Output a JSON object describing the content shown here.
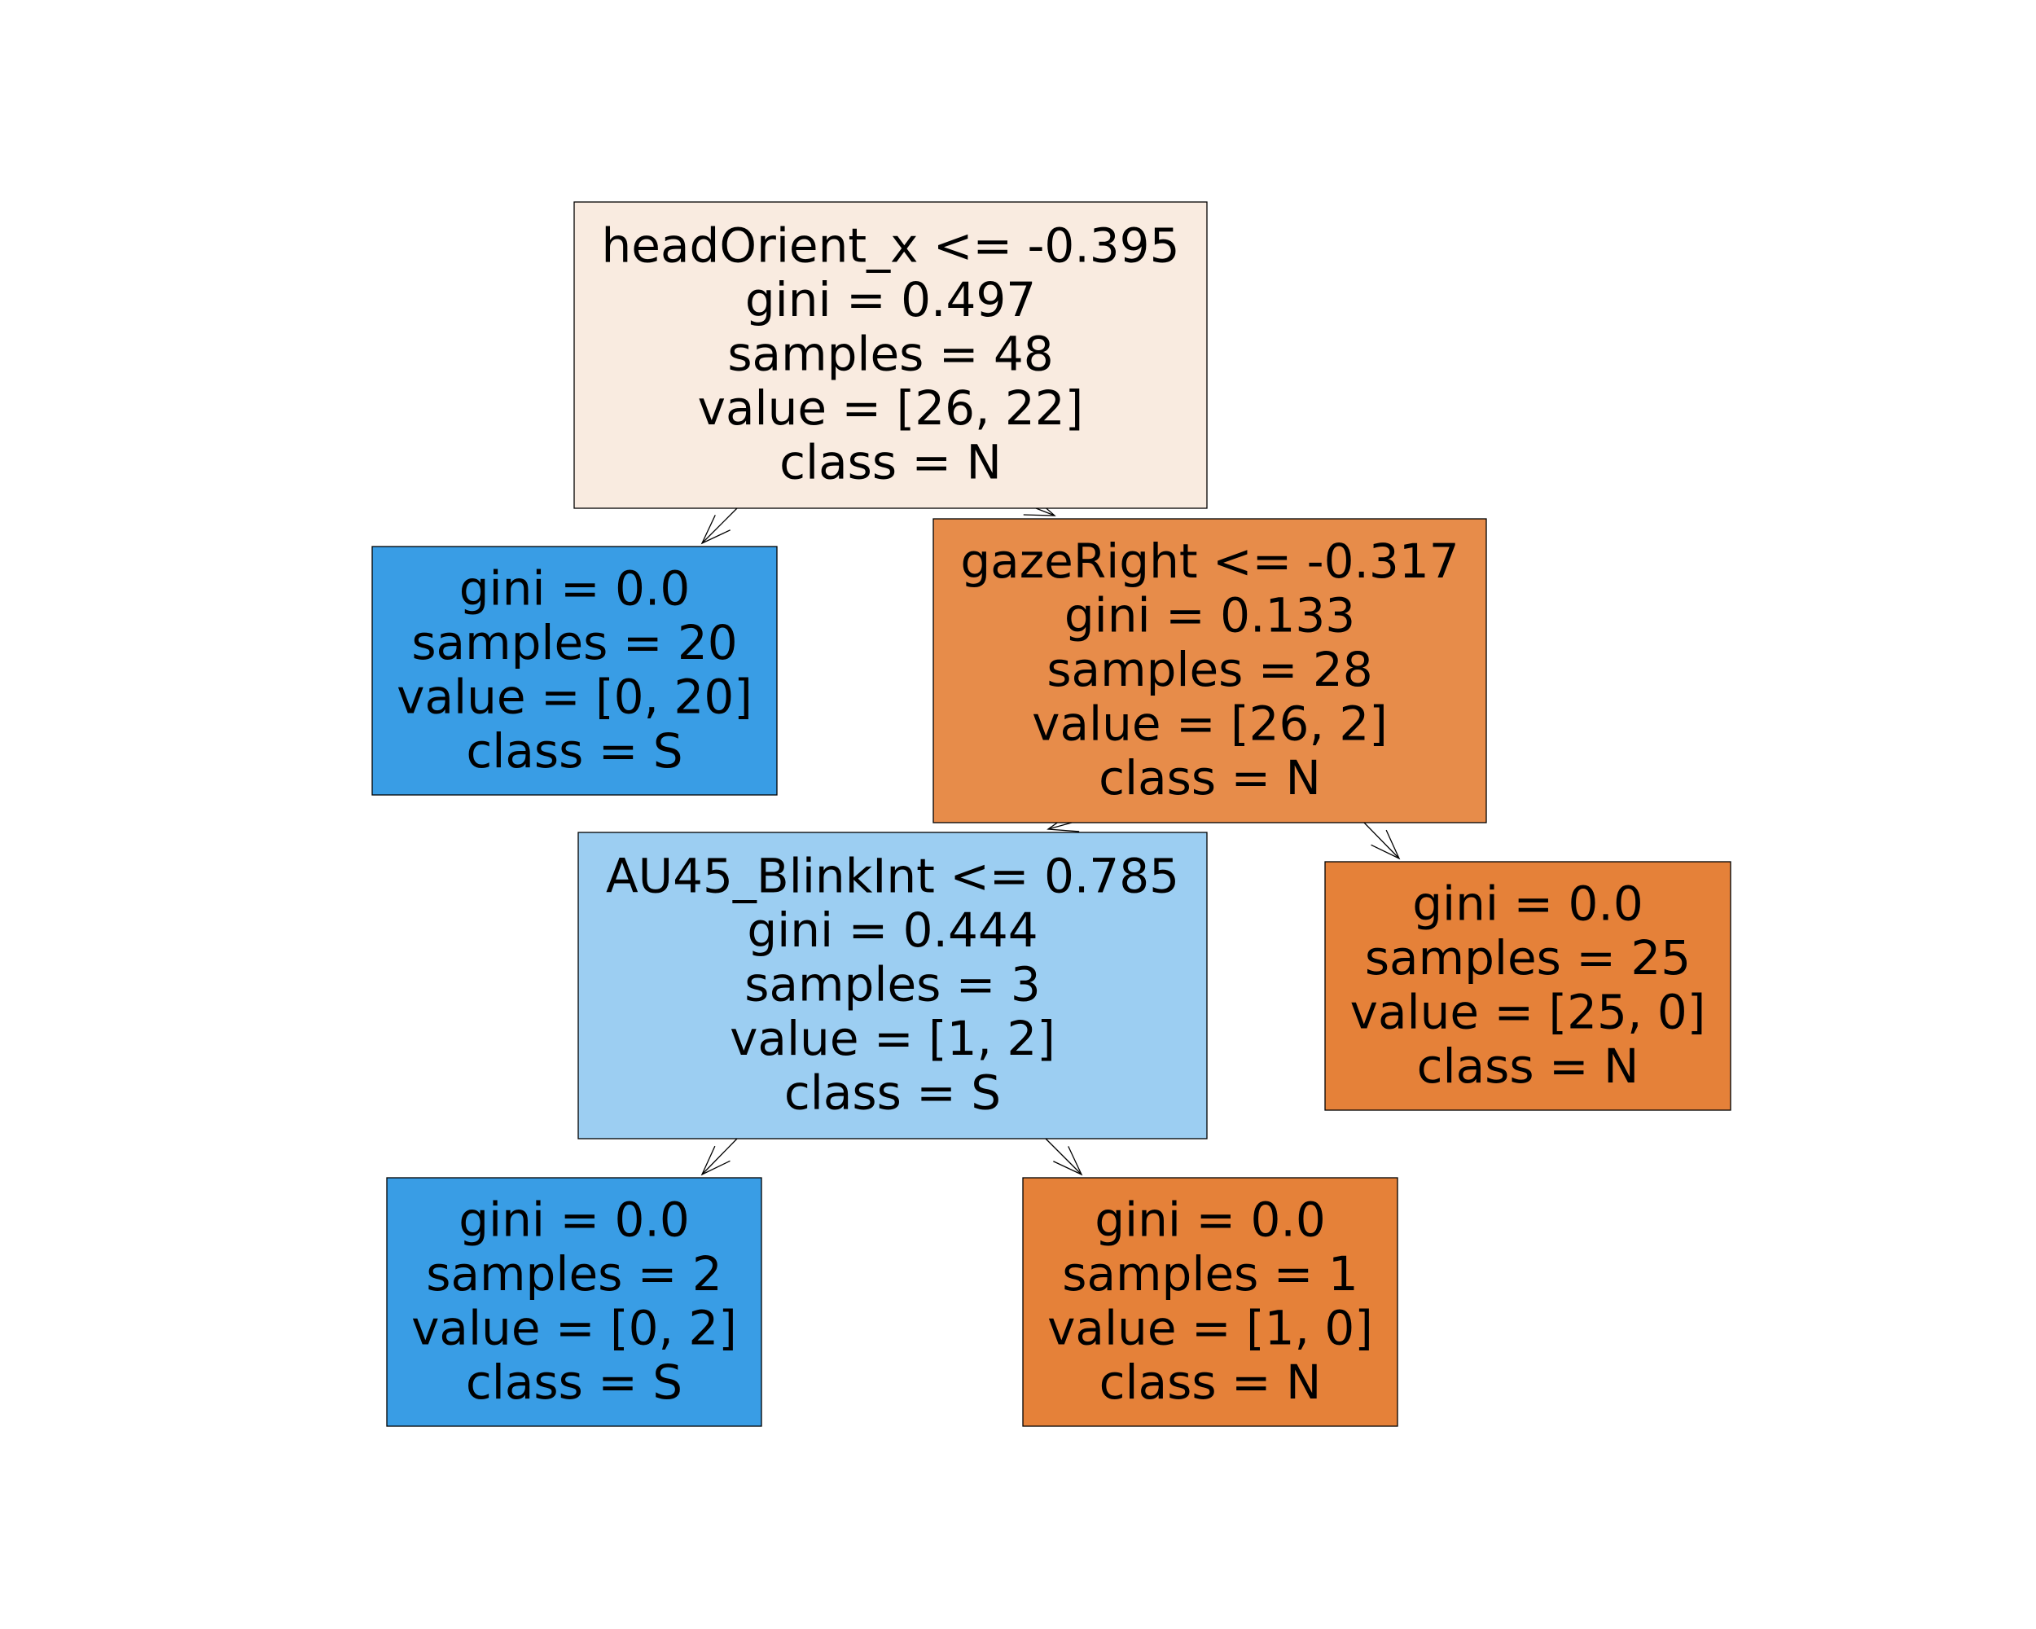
{
  "colors": {
    "orange_light": "#f9ebe0",
    "orange_mid": "#e78c4a",
    "orange_full": "#e58139",
    "blue_full": "#399de5",
    "blue_light": "#9ccef2"
  },
  "nodes": [
    {
      "id": "root",
      "lines": [
        "headOrient_x <= -0.395",
        "gini = 0.497",
        "samples = 48",
        "value = [26, 22]",
        "class = N"
      ],
      "color": "#f9ebe0"
    },
    {
      "id": "left-leaf-1",
      "lines": [
        "gini = 0.0",
        "samples = 20",
        "value = [0, 20]",
        "class = S"
      ],
      "color": "#399de5"
    },
    {
      "id": "gazeright-split",
      "lines": [
        "gazeRight <= -0.317",
        "gini = 0.133",
        "samples = 28",
        "value = [26, 2]",
        "class = N"
      ],
      "color": "#e78c4a"
    },
    {
      "id": "blink-split",
      "lines": [
        "AU45_BlinkInt <= 0.785",
        "gini = 0.444",
        "samples = 3",
        "value = [1, 2]",
        "class = S"
      ],
      "color": "#9ccef2"
    },
    {
      "id": "right-leaf-25",
      "lines": [
        "gini = 0.0",
        "samples = 25",
        "value = [25, 0]",
        "class = N"
      ],
      "color": "#e58139"
    },
    {
      "id": "leaf-2",
      "lines": [
        "gini = 0.0",
        "samples = 2",
        "value = [0, 2]",
        "class = S"
      ],
      "color": "#399de5"
    },
    {
      "id": "leaf-1",
      "lines": [
        "gini = 0.0",
        "samples = 1",
        "value = [1, 0]",
        "class = N"
      ],
      "color": "#e58139"
    }
  ],
  "edges": [
    {
      "from": "root",
      "to": "left-leaf-1"
    },
    {
      "from": "root",
      "to": "gazeright-split"
    },
    {
      "from": "gazeright-split",
      "to": "blink-split"
    },
    {
      "from": "gazeright-split",
      "to": "right-leaf-25"
    },
    {
      "from": "blink-split",
      "to": "leaf-2"
    },
    {
      "from": "blink-split",
      "to": "leaf-1"
    }
  ]
}
